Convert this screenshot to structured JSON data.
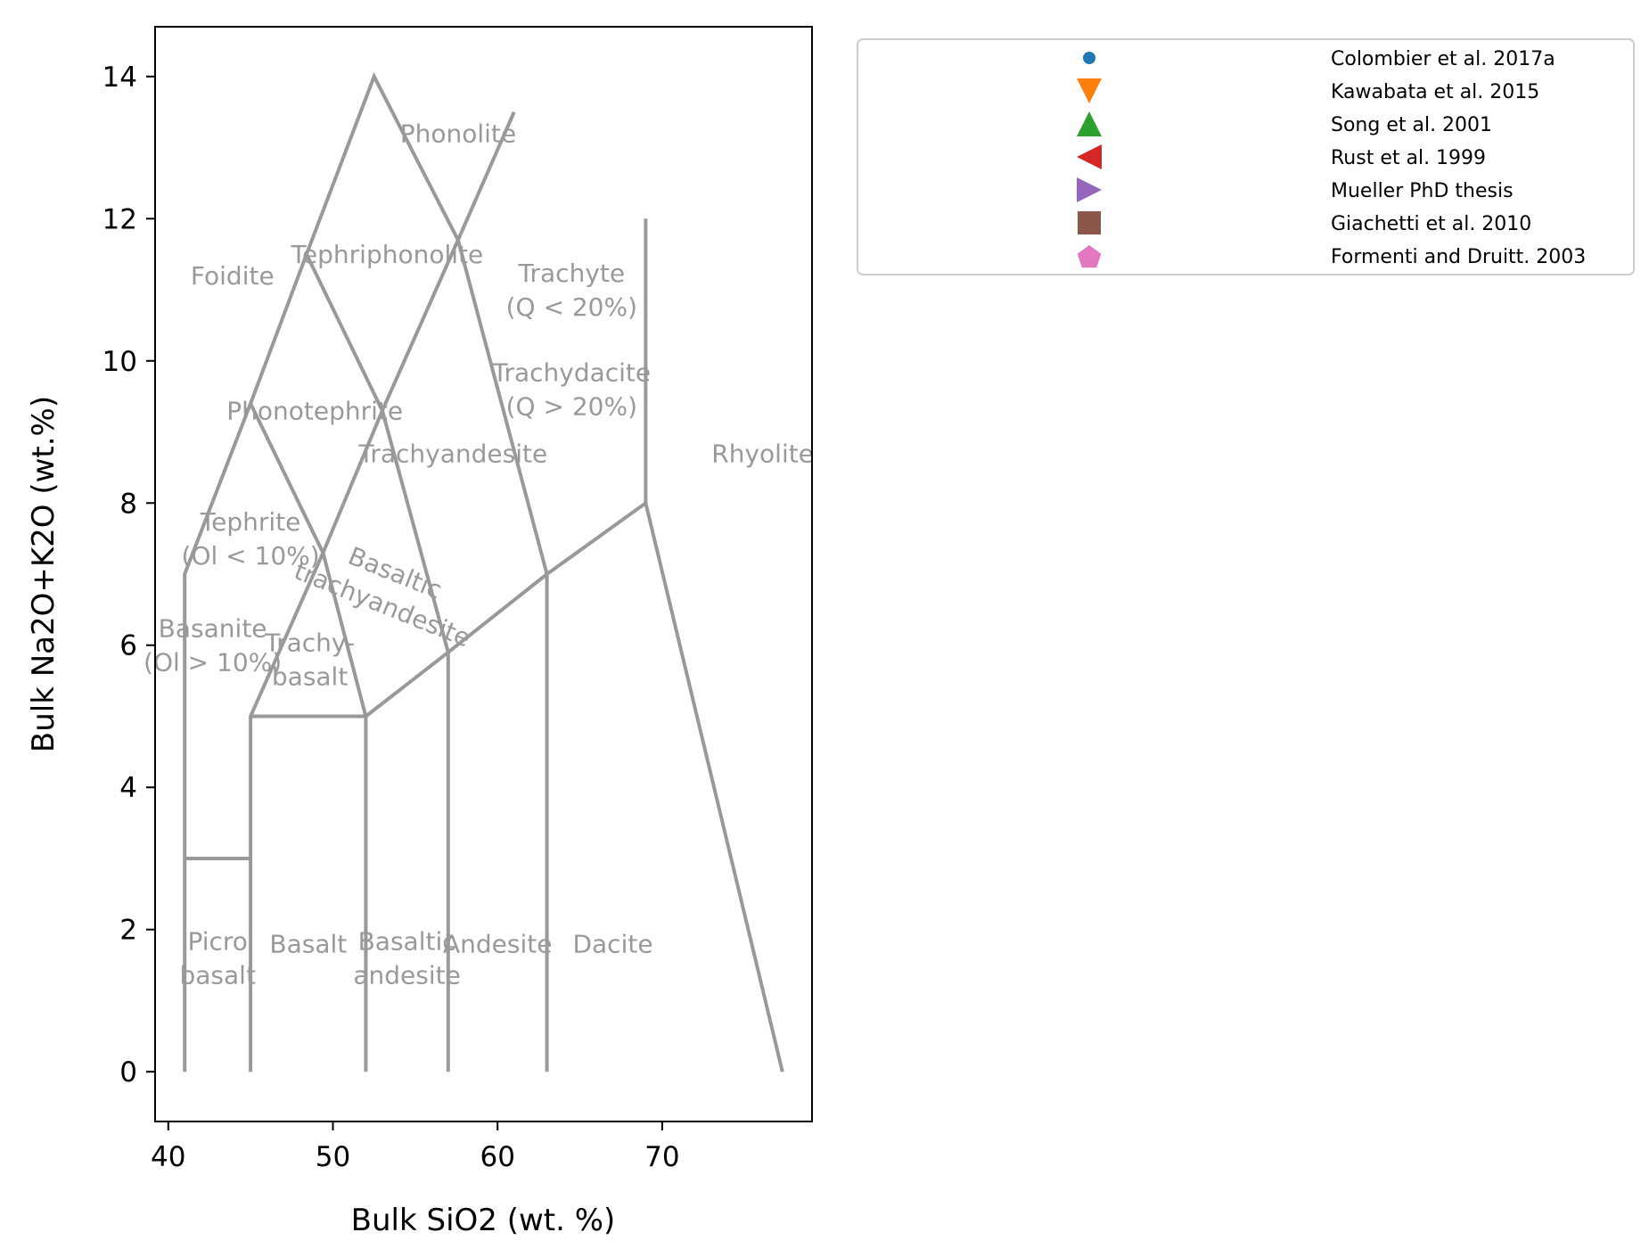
{
  "chart_data": {
    "type": "scatter",
    "title": "",
    "xlabel": "Bulk SiO2 (wt. %)",
    "ylabel": "Bulk Na2O+K2O (wt.%)",
    "xlim": [
      39.2,
      79.1
    ],
    "ylim": [
      -0.7,
      14.7
    ],
    "xticks": [
      40,
      50,
      60,
      70
    ],
    "yticks": [
      0,
      2,
      4,
      6,
      8,
      10,
      12,
      14
    ],
    "grid": false,
    "legend_position": "outside-right-top",
    "series": [
      {
        "name": "Colombier et al. 2017a",
        "marker": "circle",
        "color": "#1f77b4",
        "points": []
      },
      {
        "name": "Kawabata et al. 2015",
        "marker": "triangle-down",
        "color": "#ff7f0e",
        "points": []
      },
      {
        "name": "Song et al. 2001",
        "marker": "triangle-up",
        "color": "#2ca02c",
        "points": []
      },
      {
        "name": "Rust et al. 1999",
        "marker": "triangle-left",
        "color": "#d62728",
        "points": []
      },
      {
        "name": "Mueller PhD thesis",
        "marker": "triangle-right",
        "color": "#9467bd",
        "points": []
      },
      {
        "name": "Giachetti et al. 2010",
        "marker": "square",
        "color": "#8c564b",
        "points": []
      },
      {
        "name": "Formenti and Druitt. 2003",
        "marker": "pentagon",
        "color": "#e377c2",
        "points": []
      }
    ],
    "tas_boundaries": [
      [
        [
          41,
          0
        ],
        [
          41,
          7
        ],
        [
          45,
          9.4
        ],
        [
          48.4,
          11.5
        ],
        [
          52.5,
          14
        ],
        [
          57.6,
          11.7
        ],
        [
          61,
          13.5
        ]
      ],
      [
        [
          45,
          0
        ],
        [
          45,
          5
        ],
        [
          49.4,
          7.3
        ],
        [
          53,
          9.3
        ],
        [
          57.6,
          11.7
        ]
      ],
      [
        [
          52,
          0
        ],
        [
          52,
          5
        ],
        [
          57,
          5.9
        ],
        [
          63,
          7
        ],
        [
          69,
          8
        ],
        [
          77.3,
          0
        ]
      ],
      [
        [
          57,
          0
        ],
        [
          57,
          5.9
        ]
      ],
      [
        [
          63,
          0
        ],
        [
          63,
          7
        ]
      ],
      [
        [
          69,
          8
        ],
        [
          69,
          12
        ]
      ],
      [
        [
          45,
          5
        ],
        [
          52,
          5
        ]
      ],
      [
        [
          41,
          3
        ],
        [
          45,
          3
        ]
      ],
      [
        [
          45,
          9.4
        ],
        [
          49.4,
          7.3
        ],
        [
          52,
          5
        ]
      ],
      [
        [
          48.4,
          11.5
        ],
        [
          53,
          9.3
        ],
        [
          57,
          5.9
        ]
      ],
      [
        [
          57.6,
          11.7
        ],
        [
          63,
          7
        ]
      ]
    ],
    "tas_fields": [
      {
        "name": "Phonolite",
        "lines": [
          "Phonolite"
        ],
        "x": 57.6,
        "y": 13.2,
        "rotate": 0
      },
      {
        "name": "Tephriphonolite",
        "lines": [
          "Tephriphonolite"
        ],
        "x": 53.3,
        "y": 11.5,
        "rotate": 0
      },
      {
        "name": "Foidite",
        "lines": [
          "Foidite"
        ],
        "x": 43.9,
        "y": 11.2,
        "rotate": 0
      },
      {
        "name": "Trachyte",
        "lines": [
          "Trachyte",
          "(Q < 20%)"
        ],
        "x": 64.5,
        "y": 11.0,
        "rotate": 0
      },
      {
        "name": "Trachydacite",
        "lines": [
          "Trachydacite",
          "(Q > 20%)"
        ],
        "x": 64.5,
        "y": 9.6,
        "rotate": 0
      },
      {
        "name": "Phonotephrite",
        "lines": [
          "Phonotephrite"
        ],
        "x": 48.9,
        "y": 9.3,
        "rotate": 0
      },
      {
        "name": "Trachyandesite",
        "lines": [
          "Trachyandesite"
        ],
        "x": 57.3,
        "y": 8.7,
        "rotate": 0
      },
      {
        "name": "Rhyolite",
        "lines": [
          "Rhyolite"
        ],
        "x": 76.1,
        "y": 8.7,
        "rotate": 0
      },
      {
        "name": "Tephrite",
        "lines": [
          "Tephrite",
          "(Ol < 10%)"
        ],
        "x": 45.0,
        "y": 7.5,
        "rotate": 0
      },
      {
        "name": "Basaltic trachyandesite",
        "lines": [
          "Basaltic",
          "trachyandesite"
        ],
        "x": 53.4,
        "y": 6.8,
        "rotate": 22
      },
      {
        "name": "Basanite",
        "lines": [
          "Basanite",
          "(Ol > 10%)"
        ],
        "x": 42.7,
        "y": 6.0,
        "rotate": 0
      },
      {
        "name": "Trachybasalt",
        "lines": [
          "Trachy-",
          "basalt"
        ],
        "x": 48.6,
        "y": 5.8,
        "rotate": 0
      },
      {
        "name": "Picrobasalt",
        "lines": [
          "Picro",
          "basalt"
        ],
        "x": 43.0,
        "y": 1.6,
        "rotate": 0
      },
      {
        "name": "Basalt",
        "lines": [
          "Basalt"
        ],
        "x": 48.5,
        "y": 1.8,
        "rotate": 0
      },
      {
        "name": "Basaltic andesite",
        "lines": [
          "Basaltic",
          "andesite"
        ],
        "x": 54.5,
        "y": 1.6,
        "rotate": 0
      },
      {
        "name": "Andesite",
        "lines": [
          "Andesite"
        ],
        "x": 60.0,
        "y": 1.8,
        "rotate": 0
      },
      {
        "name": "Dacite",
        "lines": [
          "Dacite"
        ],
        "x": 67.0,
        "y": 1.8,
        "rotate": 0
      }
    ]
  }
}
